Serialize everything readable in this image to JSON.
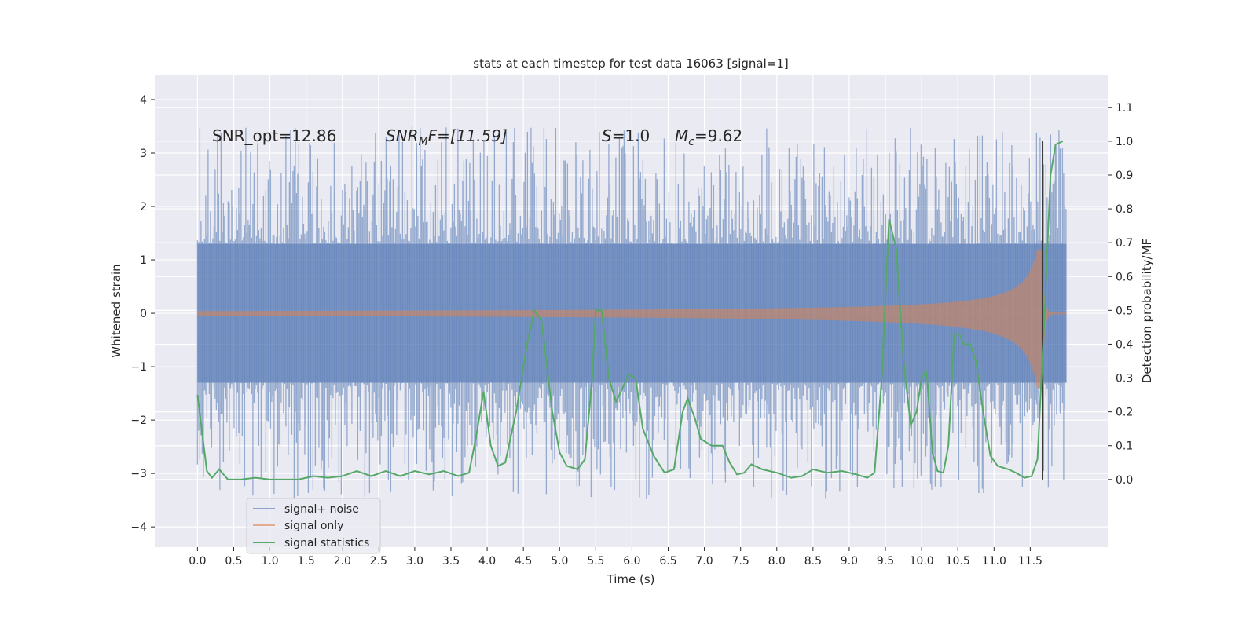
{
  "chart_data": {
    "type": "line",
    "title": "stats at each timestep for test data 16063 [signal=1]",
    "xlabel": "Time (s)",
    "ylabel": "Whitened strain",
    "y2label": "Detection probability/MF",
    "xlim": [
      -0.59,
      12.57
    ],
    "ylim": [
      -4.38,
      4.47
    ],
    "y2lim": [
      -0.2,
      1.197
    ],
    "xticks": [
      "0.0",
      "0.5",
      "1.0",
      "1.5",
      "2.0",
      "2.5",
      "3.0",
      "3.5",
      "4.0",
      "4.5",
      "5.0",
      "5.5",
      "6.0",
      "6.5",
      "7.0",
      "7.5",
      "8.0",
      "8.5",
      "9.0",
      "9.5",
      "10.0",
      "10.5",
      "11.0",
      "11.5"
    ],
    "yticks": [
      "−4",
      "−3",
      "−2",
      "−1",
      "0",
      "1",
      "2",
      "3",
      "4"
    ],
    "y2ticks": [
      "0.0",
      "0.1",
      "0.2",
      "0.3",
      "0.4",
      "0.5",
      "0.6",
      "0.7",
      "0.8",
      "0.9",
      "1.0",
      "1.1"
    ],
    "grid": true,
    "legend_position": "lower-left",
    "annotations": {
      "snr_opt": "SNR_opt=12.86",
      "snr_mf_base": "SNR",
      "snr_mf_sub": "M",
      "snr_mf_rest": "F=[11.59]",
      "s": "S",
      "s_rest": "=1.0",
      "mc": "M",
      "mc_sub": "c",
      "mc_rest": "=9.62"
    },
    "vline": {
      "x": 11.67,
      "y2_from": 0.0,
      "y2_to": 1.0,
      "color": "#333333"
    },
    "series": [
      {
        "name": "signal+ noise",
        "color": "#4c72b0",
        "x_range": [
          0,
          12
        ]
      },
      {
        "name": "signal only",
        "color": "#dd8452",
        "x_range": [
          0,
          12
        ]
      },
      {
        "name": "signal statistics",
        "color": "#55a868",
        "axis": "right",
        "points": [
          [
            0,
            0.25
          ],
          [
            0.13,
            0.025
          ],
          [
            0.2,
            0.005
          ],
          [
            0.3,
            0.03
          ],
          [
            0.42,
            0.0
          ],
          [
            0.6,
            0.0
          ],
          [
            0.8,
            0.005
          ],
          [
            1.0,
            0.0
          ],
          [
            1.2,
            0.0
          ],
          [
            1.4,
            0.0
          ],
          [
            1.6,
            0.01
          ],
          [
            1.8,
            0.005
          ],
          [
            2.0,
            0.01
          ],
          [
            2.2,
            0.025
          ],
          [
            2.4,
            0.01
          ],
          [
            2.6,
            0.025
          ],
          [
            2.8,
            0.01
          ],
          [
            3.0,
            0.025
          ],
          [
            3.2,
            0.015
          ],
          [
            3.4,
            0.025
          ],
          [
            3.6,
            0.01
          ],
          [
            3.75,
            0.02
          ],
          [
            3.85,
            0.13
          ],
          [
            3.95,
            0.26
          ],
          [
            4.05,
            0.1
          ],
          [
            4.15,
            0.04
          ],
          [
            4.25,
            0.05
          ],
          [
            4.4,
            0.2
          ],
          [
            4.55,
            0.4
          ],
          [
            4.65,
            0.5
          ],
          [
            4.75,
            0.47
          ],
          [
            4.9,
            0.2
          ],
          [
            5.0,
            0.08
          ],
          [
            5.1,
            0.04
          ],
          [
            5.25,
            0.03
          ],
          [
            5.35,
            0.06
          ],
          [
            5.45,
            0.3
          ],
          [
            5.5,
            0.5
          ],
          [
            5.58,
            0.5
          ],
          [
            5.68,
            0.3
          ],
          [
            5.78,
            0.23
          ],
          [
            5.87,
            0.27
          ],
          [
            5.95,
            0.31
          ],
          [
            6.05,
            0.3
          ],
          [
            6.15,
            0.15
          ],
          [
            6.3,
            0.07
          ],
          [
            6.45,
            0.02
          ],
          [
            6.58,
            0.03
          ],
          [
            6.7,
            0.2
          ],
          [
            6.77,
            0.24
          ],
          [
            6.87,
            0.18
          ],
          [
            6.95,
            0.12
          ],
          [
            7.1,
            0.1
          ],
          [
            7.25,
            0.1
          ],
          [
            7.35,
            0.05
          ],
          [
            7.45,
            0.015
          ],
          [
            7.55,
            0.02
          ],
          [
            7.65,
            0.045
          ],
          [
            7.8,
            0.03
          ],
          [
            8.0,
            0.02
          ],
          [
            8.2,
            0.005
          ],
          [
            8.35,
            0.01
          ],
          [
            8.5,
            0.03
          ],
          [
            8.7,
            0.02
          ],
          [
            8.9,
            0.025
          ],
          [
            9.1,
            0.015
          ],
          [
            9.25,
            0.005
          ],
          [
            9.35,
            0.02
          ],
          [
            9.45,
            0.3
          ],
          [
            9.55,
            0.77
          ],
          [
            9.65,
            0.68
          ],
          [
            9.75,
            0.35
          ],
          [
            9.85,
            0.16
          ],
          [
            9.93,
            0.2
          ],
          [
            10.0,
            0.3
          ],
          [
            10.07,
            0.32
          ],
          [
            10.15,
            0.08
          ],
          [
            10.22,
            0.025
          ],
          [
            10.3,
            0.02
          ],
          [
            10.37,
            0.1
          ],
          [
            10.45,
            0.43
          ],
          [
            10.52,
            0.43
          ],
          [
            10.58,
            0.4
          ],
          [
            10.67,
            0.4
          ],
          [
            10.75,
            0.35
          ],
          [
            10.85,
            0.2
          ],
          [
            10.95,
            0.07
          ],
          [
            11.05,
            0.04
          ],
          [
            11.2,
            0.03
          ],
          [
            11.3,
            0.02
          ],
          [
            11.42,
            0.005
          ],
          [
            11.52,
            0.01
          ],
          [
            11.6,
            0.06
          ],
          [
            11.7,
            0.5
          ],
          [
            11.78,
            0.9
          ],
          [
            11.85,
            0.99
          ],
          [
            11.95,
            1.0
          ]
        ]
      }
    ]
  }
}
